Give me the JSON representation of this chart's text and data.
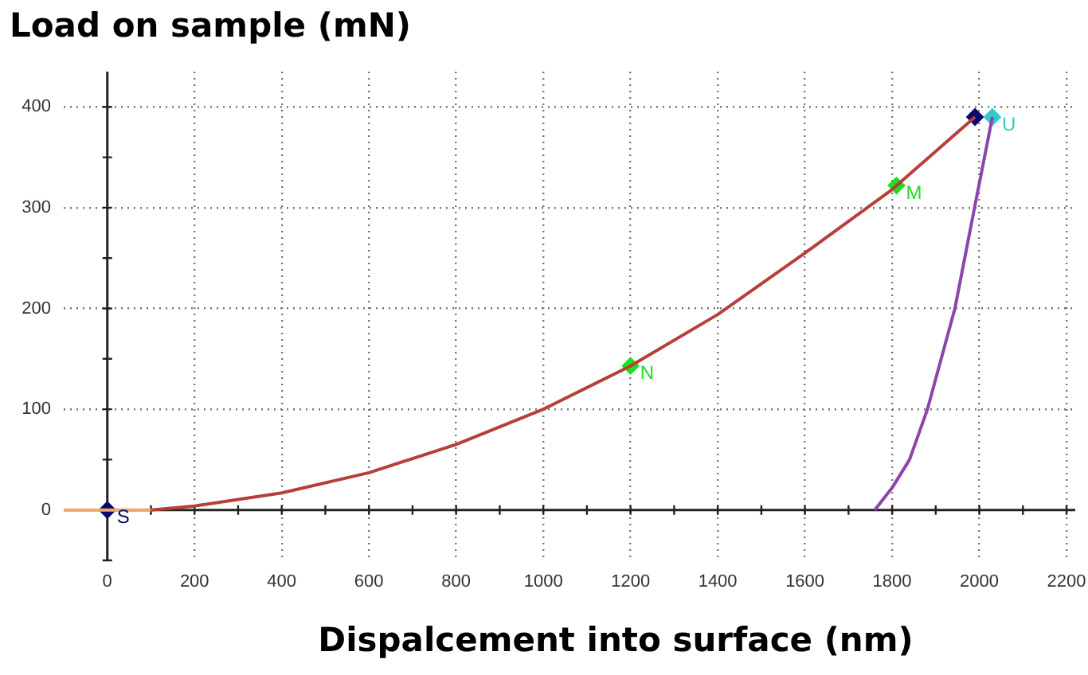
{
  "chart_data": {
    "type": "line",
    "ylabel": "Load on sample (mN)",
    "xlabel": "Dispalcement into surface (nm)",
    "series": [
      {
        "color": "#f0a868",
        "x": [
          -100,
          100
        ],
        "values": [
          0,
          0
        ]
      },
      {
        "color": "#b5403a",
        "x": [
          100,
          200,
          400,
          600,
          800,
          1000,
          1200,
          1400,
          1600,
          1800,
          1990
        ],
        "values": [
          0,
          4,
          17,
          37,
          65,
          100,
          143,
          194,
          255,
          318,
          390
        ]
      },
      {
        "color": "#8e44ad",
        "x": [
          1760,
          1800,
          1840,
          1881,
          1944,
          1989,
          2030
        ],
        "values": [
          0,
          22,
          50,
          100,
          200,
          300,
          390
        ]
      },
      {
        "type": "scatter",
        "marker": "diamond",
        "x": [
          0,
          1200,
          1810,
          1990,
          2030
        ],
        "values": [
          0,
          143,
          322,
          390,
          390
        ],
        "colors": [
          "#0a0a6e",
          "#22dd22",
          "#22dd22",
          "#0a0a6e",
          "#33cccc"
        ]
      }
    ],
    "annotations": [
      {
        "text": "S",
        "x": 0,
        "y": 0
      },
      {
        "text": "N",
        "x": 1200,
        "y": 143
      },
      {
        "text": "M",
        "x": 1810,
        "y": 322
      },
      {
        "text": "U",
        "x": 2030,
        "y": 390
      }
    ],
    "xlim": [
      -100,
      2220
    ],
    "ylim": [
      -50,
      435
    ],
    "xticks": [
      0,
      {
        "value": 100,
        "label": null
      },
      200,
      {
        "value": 300,
        "label": null
      },
      400,
      {
        "value": 500,
        "label": null
      },
      600,
      {
        "value": 700,
        "label": null
      },
      800,
      {
        "value": 900,
        "label": null
      },
      1000,
      {
        "value": 1100,
        "label": null
      },
      1200,
      {
        "value": 1300,
        "label": null
      },
      1400,
      {
        "value": 1500,
        "label": null
      },
      1600,
      {
        "value": 1700,
        "label": null
      },
      1800,
      {
        "value": 1900,
        "label": null
      },
      2000,
      {
        "value": 2100,
        "label": null
      },
      2200
    ],
    "yticks": [
      {
        "value": -50,
        "label": null
      },
      0,
      {
        "value": 50,
        "label": null
      },
      100,
      {
        "value": 150,
        "label": null
      },
      200,
      {
        "value": 250,
        "label": null
      },
      300,
      {
        "value": 350,
        "label": null
      },
      400
    ],
    "grid": true,
    "legend": false,
    "marker": "none"
  }
}
